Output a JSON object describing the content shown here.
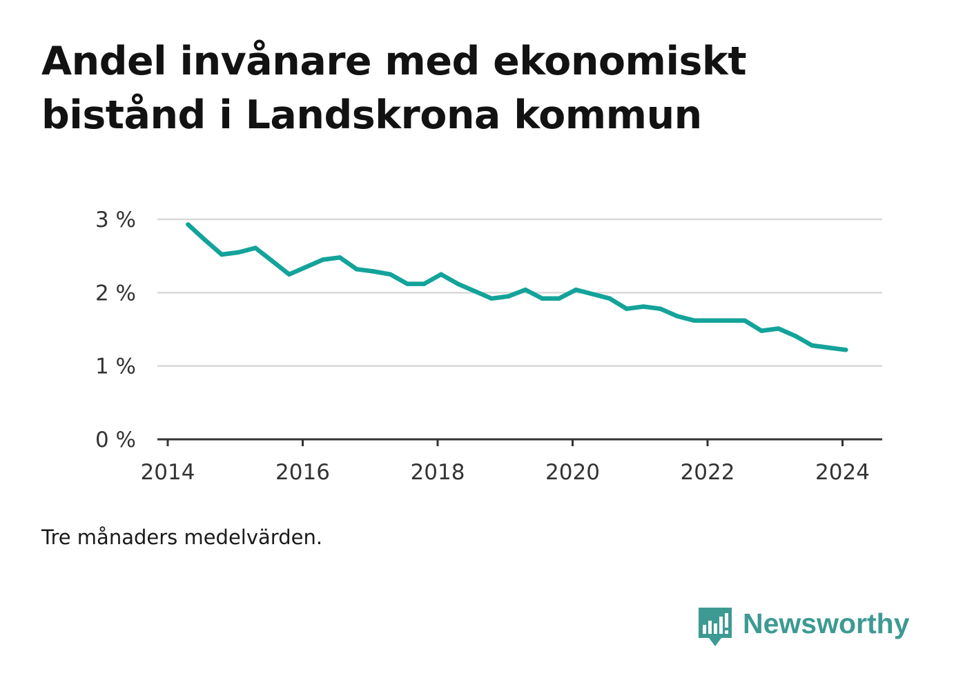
{
  "title": "Andel invånare med ekonomiskt bistånd i Landskrona kommun",
  "note": "Tre månaders medelvärden.",
  "brand": {
    "name": "Newsworthy",
    "icon": "bar-chart-speech-bubble-icon",
    "color": "#3d9a93"
  },
  "chart_data": {
    "type": "line",
    "title": "Andel invånare med ekonomiskt bistånd i Landskrona kommun",
    "xlabel": "",
    "ylabel": "",
    "line_color": "#13a39a",
    "grid": true,
    "legend": "none",
    "xlim": [
      2014,
      2024.6
    ],
    "ylim": [
      0,
      3
    ],
    "x_ticks": [
      2014,
      2016,
      2018,
      2020,
      2022,
      2024
    ],
    "y_ticks": [
      {
        "value": 0,
        "label": "0 %"
      },
      {
        "value": 1,
        "label": "1 %"
      },
      {
        "value": 2,
        "label": "2 %"
      },
      {
        "value": 3,
        "label": "3 %"
      }
    ],
    "series": [
      {
        "x": [
          2014.3,
          2014.55,
          2014.8,
          2015.05,
          2015.3,
          2015.55,
          2015.8,
          2016.05,
          2016.3,
          2016.55,
          2016.8,
          2017.05,
          2017.3,
          2017.55,
          2017.8,
          2018.05,
          2018.3,
          2018.55,
          2018.8,
          2019.05,
          2019.3,
          2019.55,
          2019.8,
          2020.05,
          2020.3,
          2020.55,
          2020.8,
          2021.05,
          2021.3,
          2021.55,
          2021.8,
          2022.05,
          2022.3,
          2022.55,
          2022.8,
          2023.05,
          2023.3,
          2023.55,
          2023.8,
          2024.05
        ],
        "y": [
          2.93,
          2.72,
          2.52,
          2.55,
          2.61,
          2.43,
          2.25,
          2.35,
          2.45,
          2.48,
          2.32,
          2.29,
          2.25,
          2.12,
          2.12,
          2.25,
          2.12,
          2.02,
          1.92,
          1.95,
          2.04,
          1.92,
          1.92,
          2.04,
          1.98,
          1.92,
          1.78,
          1.81,
          1.78,
          1.68,
          1.62,
          1.62,
          1.62,
          1.62,
          1.48,
          1.51,
          1.41,
          1.28,
          1.25,
          1.22
        ]
      }
    ]
  }
}
